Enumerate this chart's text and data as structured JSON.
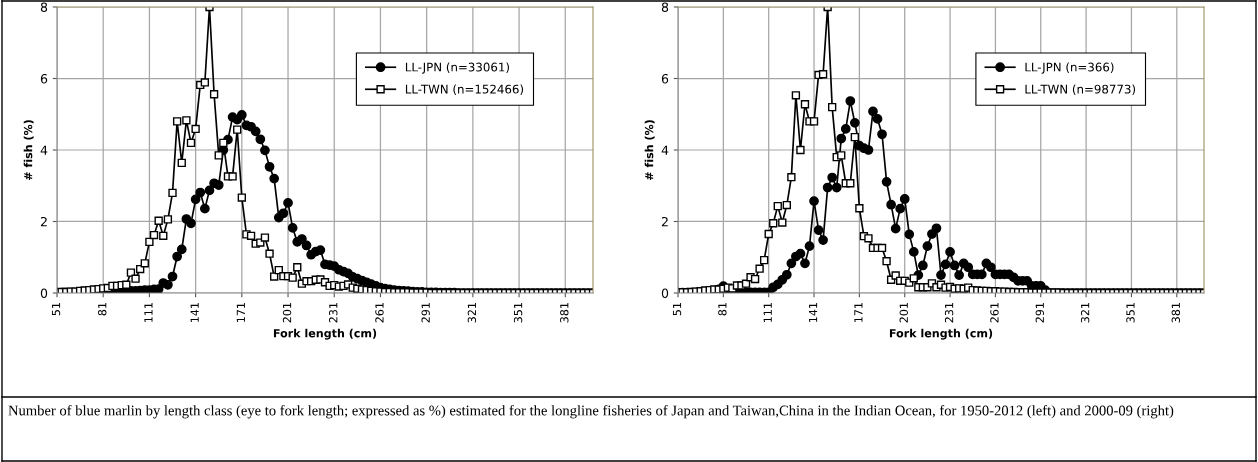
{
  "chart_data": [
    {
      "type": "line",
      "xlabel": "Fork length (cm)",
      "ylabel": "# fish (%)",
      "xlim": [
        51,
        399
      ],
      "xticks": [
        51,
        81,
        111,
        141,
        171,
        201,
        231,
        261,
        291,
        321,
        351,
        381
      ],
      "ylim": [
        0,
        8
      ],
      "yticks": [
        0,
        2,
        4,
        6,
        8
      ],
      "grid": true,
      "legend": "top right",
      "x": [
        51,
        54,
        57,
        60,
        63,
        66,
        69,
        72,
        75,
        78,
        81,
        84,
        87,
        90,
        93,
        96,
        99,
        102,
        105,
        108,
        111,
        114,
        117,
        120,
        123,
        126,
        129,
        132,
        135,
        138,
        141,
        144,
        147,
        150,
        153,
        156,
        159,
        162,
        165,
        168,
        171,
        174,
        177,
        180,
        183,
        186,
        189,
        192,
        195,
        198,
        201,
        204,
        207,
        210,
        213,
        216,
        219,
        222,
        225,
        228,
        231,
        234,
        237,
        240,
        243,
        246,
        249,
        252,
        255,
        258,
        261,
        264,
        267,
        270,
        273,
        276,
        279,
        282,
        285,
        288,
        291,
        294,
        297,
        300,
        303,
        306,
        309,
        312,
        315,
        318,
        321,
        324,
        327,
        330,
        333,
        336,
        339,
        342,
        345,
        348,
        351,
        354,
        357,
        360,
        363,
        366,
        369,
        372,
        375,
        378,
        381,
        384,
        387,
        390,
        393,
        396,
        399
      ],
      "series": [
        {
          "name": "LL-JPN (n=33061)",
          "color": "#000000",
          "marker": "circle",
          "values": [
            0.01,
            0.01,
            0.01,
            0.01,
            0.01,
            0.02,
            0.02,
            0.02,
            0.02,
            0.03,
            0.03,
            0.03,
            0.03,
            0.04,
            0.04,
            0.05,
            0.06,
            0.06,
            0.07,
            0.08,
            0.08,
            0.1,
            0.11,
            0.28,
            0.23,
            0.46,
            1.02,
            1.22,
            2.07,
            1.95,
            2.62,
            2.81,
            2.36,
            2.87,
            3.07,
            3.02,
            4.0,
            4.29,
            4.92,
            4.85,
            4.98,
            4.69,
            4.65,
            4.52,
            4.3,
            3.99,
            3.53,
            3.2,
            2.11,
            2.23,
            2.52,
            1.82,
            1.43,
            1.51,
            1.33,
            1.07,
            1.16,
            1.2,
            0.8,
            0.78,
            0.75,
            0.65,
            0.6,
            0.55,
            0.45,
            0.4,
            0.35,
            0.3,
            0.25,
            0.2,
            0.15,
            0.12,
            0.1,
            0.08,
            0.07,
            0.06,
            0.05,
            0.04,
            0.03,
            0.03,
            0.02,
            0.02,
            0.02,
            0.01,
            0.01,
            0.01,
            0.01,
            0,
            0,
            0,
            0,
            0,
            0,
            0,
            0,
            0,
            0,
            0,
            0,
            0,
            0,
            0,
            0,
            0,
            0,
            0,
            0,
            0,
            0,
            0,
            0,
            0,
            0,
            0,
            0,
            0,
            0
          ]
        },
        {
          "name": "LL-TWN (n=152466)",
          "color": "#000000",
          "marker": "square",
          "values": [
            0.02,
            0.03,
            0.03,
            0.04,
            0.04,
            0.06,
            0.07,
            0.08,
            0.1,
            0.11,
            0.13,
            0.14,
            0.2,
            0.2,
            0.22,
            0.23,
            0.57,
            0.4,
            0.67,
            0.83,
            1.43,
            1.62,
            2.02,
            1.6,
            2.06,
            2.8,
            4.8,
            3.64,
            4.83,
            4.2,
            4.59,
            5.82,
            5.89,
            8.0,
            5.56,
            3.85,
            4.2,
            3.26,
            3.26,
            4.57,
            2.67,
            1.64,
            1.6,
            1.38,
            1.41,
            1.55,
            1.1,
            0.46,
            0.64,
            0.47,
            0.47,
            0.43,
            0.72,
            0.26,
            0.33,
            0.33,
            0.37,
            0.38,
            0.3,
            0.2,
            0.22,
            0.18,
            0.2,
            0.24,
            0.15,
            0.12,
            0.1,
            0.08,
            0.06,
            0.05,
            0.04,
            0.03,
            0.03,
            0.02,
            0.02,
            0.02,
            0.02,
            0.01,
            0.01,
            0.01,
            0.01,
            0,
            0,
            0,
            0,
            0,
            0,
            0,
            0,
            0,
            0,
            0,
            0,
            0,
            0,
            0,
            0,
            0,
            0,
            0,
            0,
            0,
            0,
            0,
            0,
            0,
            0,
            0,
            0,
            0,
            0,
            0,
            0,
            0,
            0,
            0,
            0
          ]
        }
      ],
      "annotations": [
        "Number of blue marlin by length class (eye to fork length; expressed as %) estimated for the longline fisheries of Japan and Taiwan,China in the Indian Ocean, for 1950-2012 (left) and 2000-09 (right)"
      ]
    },
    {
      "type": "line",
      "xlabel": "Fork length (cm)",
      "ylabel": "# fish (%)",
      "xlim": [
        51,
        399
      ],
      "xticks": [
        51,
        81,
        111,
        141,
        171,
        201,
        231,
        261,
        291,
        321,
        351,
        381
      ],
      "ylim": [
        0,
        8
      ],
      "yticks": [
        0,
        2,
        4,
        6,
        8
      ],
      "grid": true,
      "legend": "top right",
      "x": [
        51,
        54,
        57,
        60,
        63,
        66,
        69,
        72,
        75,
        78,
        81,
        84,
        87,
        90,
        93,
        96,
        99,
        102,
        105,
        108,
        111,
        114,
        117,
        120,
        123,
        126,
        129,
        132,
        135,
        138,
        141,
        144,
        147,
        150,
        153,
        156,
        159,
        162,
        165,
        168,
        171,
        174,
        177,
        180,
        183,
        186,
        189,
        192,
        195,
        198,
        201,
        204,
        207,
        210,
        213,
        216,
        219,
        222,
        225,
        228,
        231,
        234,
        237,
        240,
        243,
        246,
        249,
        252,
        255,
        258,
        261,
        264,
        267,
        270,
        273,
        276,
        279,
        282,
        285,
        288,
        291,
        294,
        297,
        300,
        303,
        306,
        309,
        312,
        315,
        318,
        321,
        324,
        327,
        330,
        333,
        336,
        339,
        342,
        345,
        348,
        351,
        354,
        357,
        360,
        363,
        366,
        369,
        372,
        375,
        378,
        381,
        384,
        387,
        390,
        393,
        396,
        399
      ],
      "series": [
        {
          "name": "LL-JPN (n=366)",
          "color": "#000000",
          "marker": "circle",
          "values": [
            0.01,
            0.01,
            0.01,
            0.01,
            0.01,
            0.02,
            0.02,
            0.03,
            0.05,
            0.1,
            0.19,
            0.1,
            0.02,
            0.02,
            0.02,
            0.02,
            0.02,
            0.02,
            0.02,
            0.02,
            0.02,
            0.16,
            0.24,
            0.37,
            0.51,
            0.83,
            1.02,
            1.1,
            0.83,
            1.31,
            2.57,
            1.76,
            1.48,
            2.95,
            3.23,
            2.95,
            4.32,
            4.59,
            5.37,
            4.76,
            4.12,
            4.05,
            4.0,
            5.08,
            4.87,
            4.44,
            3.11,
            2.47,
            1.8,
            2.36,
            2.63,
            1.64,
            1.15,
            0.5,
            0.77,
            1.31,
            1.65,
            1.81,
            0.5,
            0.8,
            1.15,
            0.77,
            0.5,
            0.83,
            0.72,
            0.52,
            0.52,
            0.52,
            0.83,
            0.72,
            0.52,
            0.52,
            0.52,
            0.52,
            0.44,
            0.34,
            0.34,
            0.34,
            0.2,
            0.2,
            0.2,
            0.08,
            0,
            0,
            0,
            0,
            0,
            0,
            0,
            0,
            0,
            0,
            0,
            0,
            0,
            0,
            0,
            0,
            0,
            0,
            0,
            0,
            0,
            0,
            0,
            0,
            0,
            0,
            0,
            0,
            0,
            0,
            0,
            0,
            0,
            0,
            0
          ]
        },
        {
          "name": "LL-TWN (n=98773)",
          "color": "#000000",
          "marker": "square",
          "values": [
            0.02,
            0.02,
            0.02,
            0.03,
            0.04,
            0.05,
            0.07,
            0.08,
            0.1,
            0.1,
            0.12,
            0.15,
            0.13,
            0.21,
            0.21,
            0.26,
            0.44,
            0.39,
            0.68,
            0.92,
            1.65,
            1.95,
            2.43,
            1.97,
            2.46,
            3.24,
            5.53,
            4.0,
            5.28,
            4.8,
            4.8,
            6.1,
            6.12,
            8.0,
            5.2,
            3.8,
            3.85,
            3.07,
            3.07,
            4.36,
            2.37,
            1.59,
            1.53,
            1.26,
            1.26,
            1.26,
            0.89,
            0.37,
            0.49,
            0.34,
            0.34,
            0.29,
            0.41,
            0.16,
            0.16,
            0.16,
            0.27,
            0.16,
            0.23,
            0.15,
            0.17,
            0.12,
            0.13,
            0.12,
            0.15,
            0.08,
            0.07,
            0.06,
            0.06,
            0.05,
            0.05,
            0.04,
            0.04,
            0.03,
            0.03,
            0.02,
            0.02,
            0.02,
            0.01,
            0.01,
            0.01,
            0.01,
            0.01,
            0.01,
            0.01,
            0,
            0,
            0,
            0,
            0,
            0,
            0,
            0,
            0,
            0,
            0,
            0,
            0,
            0,
            0,
            0,
            0,
            0,
            0,
            0,
            0,
            0,
            0,
            0,
            0,
            0,
            0,
            0,
            0,
            0,
            0,
            0
          ]
        }
      ]
    }
  ]
}
